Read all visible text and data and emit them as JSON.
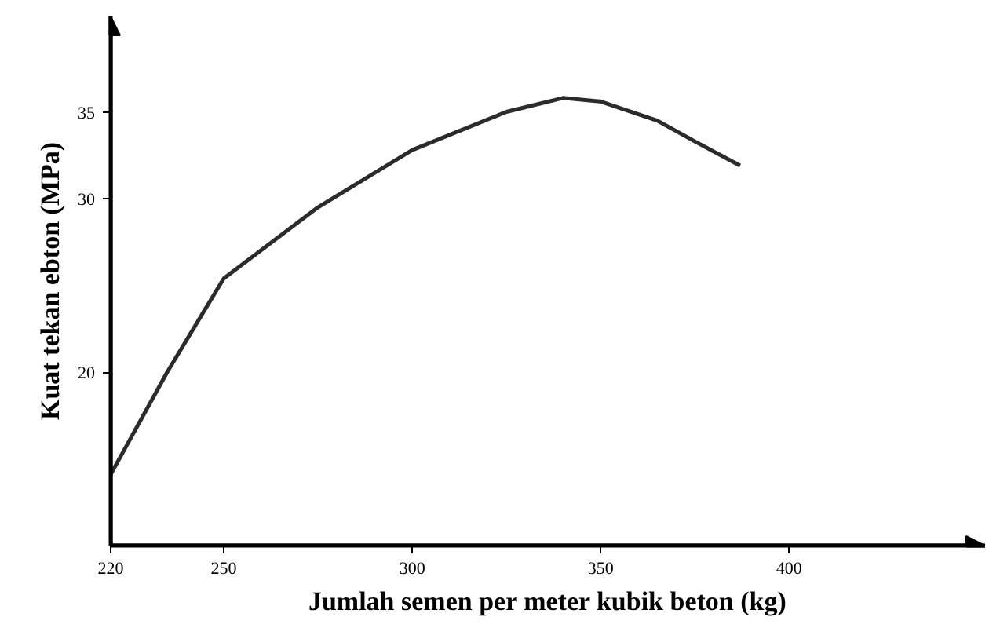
{
  "chart_data": {
    "type": "line",
    "xlabel": "Jumlah semen per meter kubik beton (kg)",
    "ylabel": "Kuat tekan ebton (MPa)",
    "x": [
      220,
      235,
      250,
      275,
      300,
      325,
      340,
      350,
      365,
      375,
      387
    ],
    "series": [
      {
        "color": "#2b2b2b",
        "values": [
          14.1,
          20.0,
          25.4,
          29.5,
          32.8,
          35.0,
          35.8,
          35.6,
          34.5,
          33.3,
          31.9
        ]
      }
    ],
    "xlim": [
      220,
      452
    ],
    "ylim": [
      10,
      40.5
    ],
    "xticks": [
      220,
      250,
      300,
      350,
      400
    ],
    "yticks": [
      20,
      30,
      35
    ],
    "grid": false,
    "marker": "none",
    "line_style": "solid"
  }
}
